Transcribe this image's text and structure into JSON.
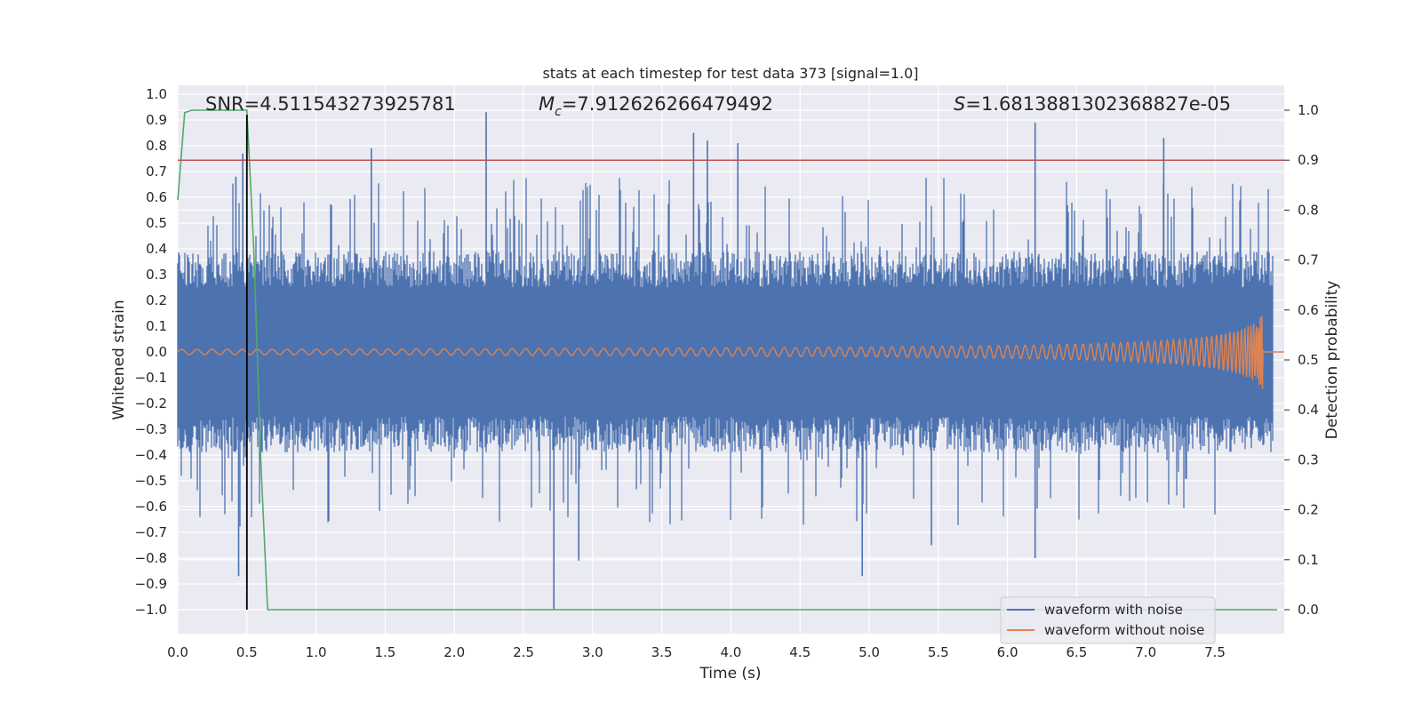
{
  "chart_data": {
    "type": "line",
    "title": "stats at each timestep for test data 373 [signal=1.0]",
    "xlabel": "Time (s)",
    "ylabel": "Whitened strain",
    "y2label": "Detection probability",
    "xlim": [
      0.0,
      8.0
    ],
    "ylim": [
      -1.0,
      1.0
    ],
    "y2lim": [
      0.0,
      1.0
    ],
    "x_ticks": [
      "0.0",
      "0.5",
      "1.0",
      "1.5",
      "2.0",
      "2.5",
      "3.0",
      "3.5",
      "4.0",
      "4.5",
      "5.0",
      "5.5",
      "6.0",
      "6.5",
      "7.0",
      "7.5"
    ],
    "y_ticks": [
      "−1.0",
      "−0.9",
      "−0.8",
      "−0.7",
      "−0.6",
      "−0.5",
      "−0.4",
      "−0.3",
      "−0.2",
      "−0.1",
      "0.0",
      "0.1",
      "0.2",
      "0.3",
      "0.4",
      "0.5",
      "0.6",
      "0.7",
      "0.8",
      "0.9",
      "1.0"
    ],
    "y2_ticks": [
      "0.0",
      "0.1",
      "0.2",
      "0.3",
      "0.4",
      "0.5",
      "0.6",
      "0.7",
      "0.8",
      "0.9",
      "1.0"
    ],
    "grid": true,
    "legend_position": "bottom-right",
    "annotations": {
      "snr": "SNR=4.511543273925781",
      "mc_symbol": "M",
      "mc_sub": "c",
      "mc_value": "=7.912626266479492",
      "s_symbol": "S",
      "s_value": "=1.6813881302368827e-05"
    },
    "series": [
      {
        "name": "waveform with noise",
        "color": "#4c72b0",
        "style": "dense noise band, typical envelope about ±0.35",
        "x_range": [
          0.0,
          8.0
        ],
        "peaks_up": [
          [
            0.42,
            0.68
          ],
          [
            0.47,
            0.77
          ],
          [
            1.4,
            0.79
          ],
          [
            2.23,
            0.93
          ],
          [
            3.73,
            0.85
          ],
          [
            3.83,
            0.82
          ],
          [
            4.05,
            0.81
          ],
          [
            6.2,
            0.89
          ],
          [
            7.13,
            0.83
          ]
        ],
        "peaks_down": [
          [
            0.44,
            -0.87
          ],
          [
            0.5,
            -0.92
          ],
          [
            2.72,
            -1.0
          ],
          [
            2.9,
            -0.81
          ],
          [
            4.95,
            -0.87
          ],
          [
            5.45,
            -0.75
          ],
          [
            6.2,
            -0.8
          ]
        ]
      },
      {
        "name": "waveform without noise",
        "color": "#dd8452",
        "style": "chirp: amplitude grows from 0.01 at t=0 to about 0.17 at merger t=7.85, then flat zero",
        "x": [
          0.0,
          1.0,
          2.0,
          3.0,
          4.0,
          5.0,
          6.0,
          6.5,
          7.0,
          7.3,
          7.5,
          7.7,
          7.8,
          7.85,
          7.9,
          8.0
        ],
        "amplitude": [
          0.01,
          0.011,
          0.012,
          0.014,
          0.016,
          0.019,
          0.025,
          0.03,
          0.04,
          0.05,
          0.065,
          0.09,
          0.12,
          0.17,
          0.0,
          0.0
        ]
      },
      {
        "name": "",
        "color": "#55a868",
        "axis": "right",
        "x": [
          0.0,
          0.05,
          0.1,
          0.15,
          0.2,
          0.25,
          0.3,
          0.35,
          0.4,
          0.45,
          0.5,
          0.55,
          0.6,
          0.65,
          0.7,
          1.0,
          2.0,
          4.0,
          6.0,
          7.95
        ],
        "y": [
          0.82,
          0.995,
          1.0,
          1.0,
          1.0,
          1.0,
          1.0,
          1.0,
          1.0,
          1.0,
          1.0,
          0.72,
          0.3,
          0.0,
          0.0,
          0.0,
          0.0,
          0.0,
          0.0,
          0.0
        ]
      }
    ],
    "threshold_line": {
      "axis": "right",
      "y": 0.9,
      "color": "#c44e52"
    },
    "marker_line": {
      "x": 0.5,
      "y_from": -1.0,
      "y_to": 0.92,
      "color": "#000000"
    },
    "noise_extent_y": [
      -1.0,
      1.0
    ]
  }
}
